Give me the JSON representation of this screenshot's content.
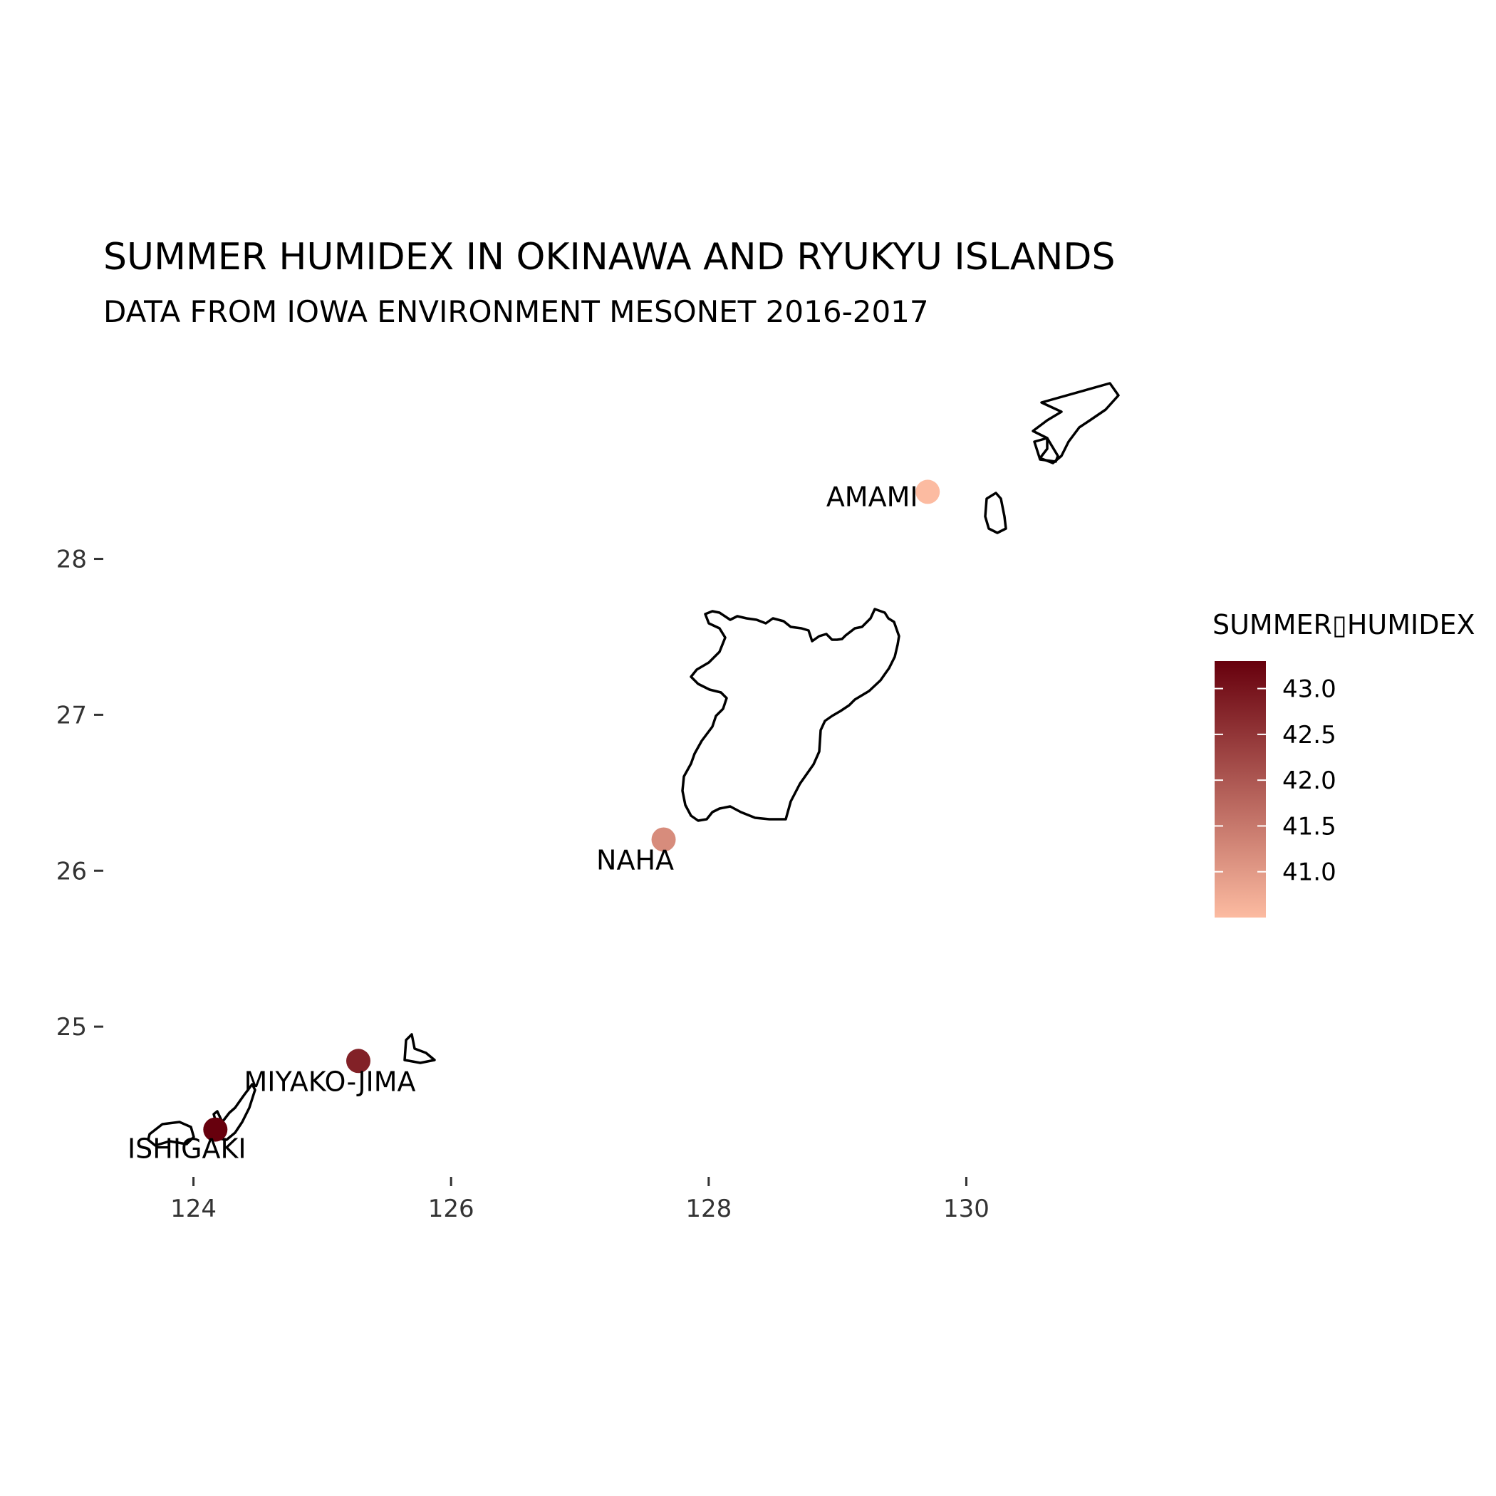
{
  "title": "SUMMER HUMIDEX IN OKINAWA AND RYUKYU ISLANDS",
  "subtitle": "DATA FROM IOWA ENVIRONMENT MESONET 2016-2017",
  "x_ticks": [
    "124",
    "126",
    "128",
    "130"
  ],
  "y_ticks": [
    "25",
    "26",
    "27",
    "28"
  ],
  "legend": {
    "title": "SUMMER▯HUMIDEX",
    "labels": [
      "43.0",
      "42.5",
      "42.0",
      "41.5",
      "41.0"
    ],
    "color_low": "#fcbba1",
    "color_high": "#67000d"
  },
  "chart_data": {
    "type": "scatter",
    "xlim": [
      123.3,
      131.9
    ],
    "ylim": [
      24.0,
      29.3
    ],
    "x_ticks": [
      124,
      126,
      128,
      130
    ],
    "y_ticks": [
      25,
      26,
      27,
      28
    ],
    "color_range": [
      40.5,
      43.3
    ],
    "legend_ticks": [
      43.0,
      42.5,
      42.0,
      41.5,
      41.0
    ],
    "points": [
      {
        "name": "AMAMI",
        "x": 129.7,
        "y": 28.43,
        "humidex": 40.5
      },
      {
        "name": "NAHA",
        "x": 127.65,
        "y": 26.2,
        "humidex": 41.2
      },
      {
        "name": "MIYAKO-JIMA",
        "x": 125.28,
        "y": 24.78,
        "humidex": 42.8
      },
      {
        "name": "ISHIGAKI",
        "x": 124.17,
        "y": 24.34,
        "humidex": 43.3
      }
    ]
  }
}
